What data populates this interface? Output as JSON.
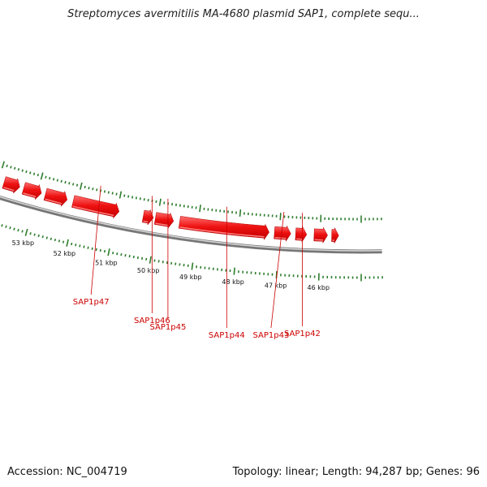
{
  "title": "Streptomyces avermitilis MA-4680 plasmid SAP1, complete sequ...",
  "footer": {
    "accession": "Accession: NC_004719",
    "summary": "Topology: linear; Length: 94,287 bp; Genes: 96"
  },
  "colors": {
    "gene": "#ee1111",
    "gene_highlight": "#ff8080",
    "backbone": "#888888",
    "ticks": "#2e7d2e",
    "gene_label": "#cc0000"
  },
  "scale_labels": [
    {
      "kbp": 53,
      "text": "53 kbp"
    },
    {
      "kbp": 52,
      "text": "52 kbp"
    },
    {
      "kbp": 51,
      "text": "51 kbp"
    },
    {
      "kbp": 50,
      "text": "50 kbp"
    },
    {
      "kbp": 49,
      "text": "49 kbp"
    },
    {
      "kbp": 48,
      "text": "48 kbp"
    },
    {
      "kbp": 47,
      "text": "47 kbp"
    },
    {
      "kbp": 46,
      "text": "46 kbp"
    }
  ],
  "genes": [
    {
      "name": "SAP1p47",
      "start_kbp": 52.1,
      "end_kbp": 50.95,
      "strand": "reverse"
    },
    {
      "name": "SAP1p46",
      "start_kbp": 50.35,
      "end_kbp": 50.1,
      "strand": "reverse"
    },
    {
      "name": "SAP1p45",
      "start_kbp": 50.05,
      "end_kbp": 49.6,
      "strand": "reverse"
    },
    {
      "name": "SAP1p44",
      "start_kbp": 49.45,
      "end_kbp": 47.25,
      "strand": "reverse"
    },
    {
      "name": "SAP1p43",
      "start_kbp": 47.12,
      "end_kbp": 46.72,
      "strand": "reverse"
    },
    {
      "name": "SAP1p42",
      "start_kbp": 46.6,
      "end_kbp": 46.33,
      "strand": "reverse"
    },
    {
      "name": "",
      "start_kbp": 46.15,
      "end_kbp": 45.82,
      "strand": "reverse"
    },
    {
      "name": "",
      "start_kbp": 45.72,
      "end_kbp": 45.55,
      "strand": "reverse"
    },
    {
      "name": "",
      "start_kbp": 53.85,
      "end_kbp": 53.45,
      "strand": "reverse"
    },
    {
      "name": "",
      "start_kbp": 53.35,
      "end_kbp": 52.9,
      "strand": "reverse"
    },
    {
      "name": "",
      "start_kbp": 52.8,
      "end_kbp": 52.25,
      "strand": "reverse"
    }
  ]
}
